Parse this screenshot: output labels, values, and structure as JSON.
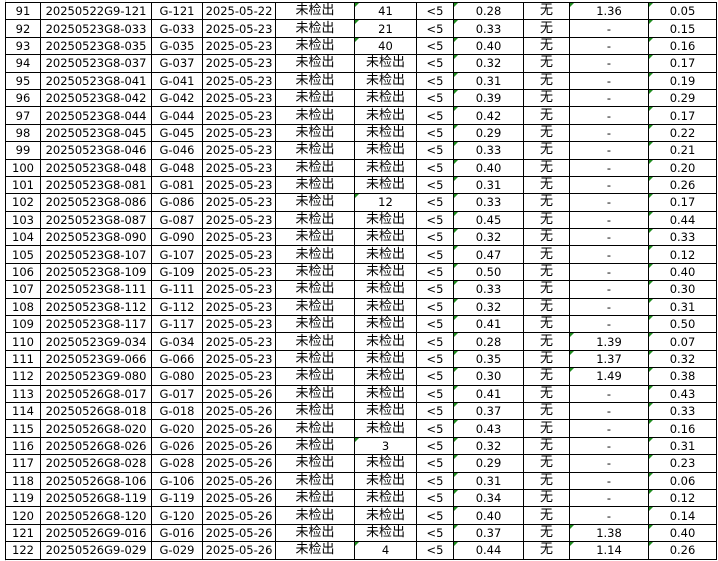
{
  "colors": {
    "grid": "#000000",
    "comment_marker": "#1e8c1e"
  },
  "rows": [
    [
      "91",
      "20250522G9-121",
      "G-121",
      "2025-05-22",
      "未检出",
      "41",
      "<5",
      "0.28",
      "无",
      "1.36",
      "0.05"
    ],
    [
      "92",
      "20250523G8-033",
      "G-033",
      "2025-05-23",
      "未检出",
      "21",
      "<5",
      "0.33",
      "无",
      "-",
      "0.15"
    ],
    [
      "93",
      "20250523G8-035",
      "G-035",
      "2025-05-23",
      "未检出",
      "40",
      "<5",
      "0.40",
      "无",
      "-",
      "0.16"
    ],
    [
      "94",
      "20250523G8-037",
      "G-037",
      "2025-05-23",
      "未检出",
      "未检出",
      "<5",
      "0.32",
      "无",
      "-",
      "0.17"
    ],
    [
      "95",
      "20250523G8-041",
      "G-041",
      "2025-05-23",
      "未检出",
      "未检出",
      "<5",
      "0.31",
      "无",
      "-",
      "0.19"
    ],
    [
      "96",
      "20250523G8-042",
      "G-042",
      "2025-05-23",
      "未检出",
      "未检出",
      "<5",
      "0.39",
      "无",
      "-",
      "0.29"
    ],
    [
      "97",
      "20250523G8-044",
      "G-044",
      "2025-05-23",
      "未检出",
      "未检出",
      "<5",
      "0.42",
      "无",
      "-",
      "0.17"
    ],
    [
      "98",
      "20250523G8-045",
      "G-045",
      "2025-05-23",
      "未检出",
      "未检出",
      "<5",
      "0.29",
      "无",
      "-",
      "0.22"
    ],
    [
      "99",
      "20250523G8-046",
      "G-046",
      "2025-05-23",
      "未检出",
      "未检出",
      "<5",
      "0.33",
      "无",
      "-",
      "0.21"
    ],
    [
      "100",
      "20250523G8-048",
      "G-048",
      "2025-05-23",
      "未检出",
      "未检出",
      "<5",
      "0.40",
      "无",
      "-",
      "0.20"
    ],
    [
      "101",
      "20250523G8-081",
      "G-081",
      "2025-05-23",
      "未检出",
      "未检出",
      "<5",
      "0.31",
      "无",
      "-",
      "0.26"
    ],
    [
      "102",
      "20250523G8-086",
      "G-086",
      "2025-05-23",
      "未检出",
      "12",
      "<5",
      "0.33",
      "无",
      "-",
      "0.17"
    ],
    [
      "103",
      "20250523G8-087",
      "G-087",
      "2025-05-23",
      "未检出",
      "未检出",
      "<5",
      "0.45",
      "无",
      "-",
      "0.44"
    ],
    [
      "104",
      "20250523G8-090",
      "G-090",
      "2025-05-23",
      "未检出",
      "未检出",
      "<5",
      "0.32",
      "无",
      "-",
      "0.33"
    ],
    [
      "105",
      "20250523G8-107",
      "G-107",
      "2025-05-23",
      "未检出",
      "未检出",
      "<5",
      "0.47",
      "无",
      "-",
      "0.12"
    ],
    [
      "106",
      "20250523G8-109",
      "G-109",
      "2025-05-23",
      "未检出",
      "未检出",
      "<5",
      "0.50",
      "无",
      "-",
      "0.40"
    ],
    [
      "107",
      "20250523G8-111",
      "G-111",
      "2025-05-23",
      "未检出",
      "未检出",
      "<5",
      "0.33",
      "无",
      "-",
      "0.30"
    ],
    [
      "108",
      "20250523G8-112",
      "G-112",
      "2025-05-23",
      "未检出",
      "未检出",
      "<5",
      "0.32",
      "无",
      "-",
      "0.31"
    ],
    [
      "109",
      "20250523G8-117",
      "G-117",
      "2025-05-23",
      "未检出",
      "未检出",
      "<5",
      "0.41",
      "无",
      "-",
      "0.50"
    ],
    [
      "110",
      "20250523G9-034",
      "G-034",
      "2025-05-23",
      "未检出",
      "未检出",
      "<5",
      "0.28",
      "无",
      "1.39",
      "0.07"
    ],
    [
      "111",
      "20250523G9-066",
      "G-066",
      "2025-05-23",
      "未检出",
      "未检出",
      "<5",
      "0.35",
      "无",
      "1.37",
      "0.32"
    ],
    [
      "112",
      "20250523G9-080",
      "G-080",
      "2025-05-23",
      "未检出",
      "未检出",
      "<5",
      "0.30",
      "无",
      "1.49",
      "0.38"
    ],
    [
      "113",
      "20250526G8-017",
      "G-017",
      "2025-05-26",
      "未检出",
      "未检出",
      "<5",
      "0.41",
      "无",
      "-",
      "0.43"
    ],
    [
      "114",
      "20250526G8-018",
      "G-018",
      "2025-05-26",
      "未检出",
      "未检出",
      "<5",
      "0.37",
      "无",
      "-",
      "0.33"
    ],
    [
      "115",
      "20250526G8-020",
      "G-020",
      "2025-05-26",
      "未检出",
      "未检出",
      "<5",
      "0.43",
      "无",
      "-",
      "0.16"
    ],
    [
      "116",
      "20250526G8-026",
      "G-026",
      "2025-05-26",
      "未检出",
      "3",
      "<5",
      "0.32",
      "无",
      "-",
      "0.31"
    ],
    [
      "117",
      "20250526G8-028",
      "G-028",
      "2025-05-26",
      "未检出",
      "未检出",
      "<5",
      "0.29",
      "无",
      "-",
      "0.23"
    ],
    [
      "118",
      "20250526G8-106",
      "G-106",
      "2025-05-26",
      "未检出",
      "未检出",
      "<5",
      "0.31",
      "无",
      "-",
      "0.06"
    ],
    [
      "119",
      "20250526G8-119",
      "G-119",
      "2025-05-26",
      "未检出",
      "未检出",
      "<5",
      "0.34",
      "无",
      "-",
      "0.12"
    ],
    [
      "120",
      "20250526G8-120",
      "G-120",
      "2025-05-26",
      "未检出",
      "未检出",
      "<5",
      "0.40",
      "无",
      "-",
      "0.14"
    ],
    [
      "121",
      "20250526G9-016",
      "G-016",
      "2025-05-26",
      "未检出",
      "未检出",
      "<5",
      "0.37",
      "无",
      "1.38",
      "0.40"
    ],
    [
      "122",
      "20250526G9-029",
      "G-029",
      "2025-05-26",
      "未检出",
      "4",
      "<5",
      "0.44",
      "无",
      "1.14",
      "0.26"
    ]
  ]
}
